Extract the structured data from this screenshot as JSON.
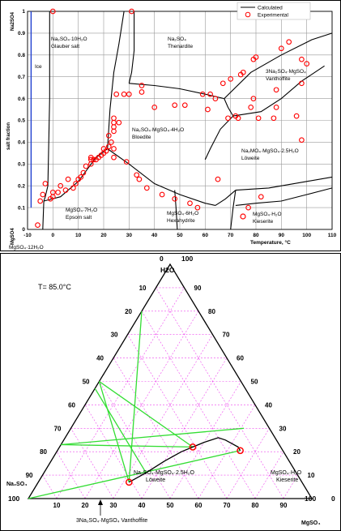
{
  "chart_data": [
    {
      "type": "scatter",
      "xlabel": "Temperature, °C",
      "ylabel_top": "Na2SO4",
      "ylabel_mid": "salt fraction",
      "ylabel_bottom": "MgSO4",
      "xlim": [
        -10,
        110
      ],
      "ylim": [
        0,
        1
      ],
      "xticks": [
        -10,
        0,
        10,
        20,
        30,
        40,
        50,
        60,
        70,
        80,
        90,
        100,
        110
      ],
      "yticks": [
        0,
        0.1,
        0.2,
        0.3,
        0.4,
        0.5,
        0.6,
        0.7,
        0.8,
        0.9,
        1
      ],
      "ytick_labels": [
        "0",
        "0.1",
        "0.2",
        "0.3",
        "0.4",
        "0.5",
        "0.6",
        "0.7",
        "0.8",
        "0.9",
        "1"
      ],
      "legend": {
        "placement": "top-right",
        "calculated": "Calculated",
        "experimental": "Experimental"
      },
      "colors": {
        "calculated": "#000000",
        "experimental": "#ff0000",
        "ice": "#1f3fd0",
        "grid": "#9a9a9a"
      },
      "region_labels": {
        "ice": "Ice",
        "glauber_1": "Na₂SO₄·10H₂O",
        "glauber_2": "Glauber salt",
        "thenardite_1": "Na₂SO₄",
        "thenardite_2": "Thenardite",
        "vanthoffite_1": "3Na₂SO₄·MgSO₄",
        "vanthoffite_2": "Vanthoffite",
        "bloedite_1": "Na₂SO₄·MgSO₄·4H₂O",
        "bloedite_2": "Bloedite",
        "loweite_1": "Na₂MO₄·MgSO₄·2.5H₂O",
        "loweite_2": "Löweite",
        "epsom_1": "MgSO₄·7H₂O",
        "epsom_2": "Epsom salt",
        "hexa_1": "MgSO₄·6H₂O",
        "hexa_2": "Hexahydrite",
        "kieserite_1": "MgSO₄·H₂O",
        "kieserite_2": "Kieserite",
        "mgso4_12": "MgSO₄·12H₂O"
      },
      "lines": [
        {
          "name": "ice",
          "points": [
            [
              -8.6,
              1.0
            ],
            [
              -8.6,
              0.1
            ]
          ]
        },
        {
          "name": "glauber-ice",
          "points": [
            [
              -1.3,
              1.0
            ],
            [
              -1.3,
              0.6
            ],
            [
              -2.0,
              0.2
            ],
            [
              -3.0,
              0.15
            ],
            [
              -3.6,
              0.13
            ]
          ]
        },
        {
          "name": "ice-epsom",
          "points": [
            [
              -3.6,
              0.13
            ],
            [
              -4.0,
              0.0
            ]
          ]
        },
        {
          "name": "glauber-epsom",
          "points": [
            [
              -3.6,
              0.13
            ],
            [
              3,
              0.15
            ],
            [
              10,
              0.22
            ],
            [
              17,
              0.33
            ],
            [
              21.5,
              0.37
            ]
          ]
        },
        {
          "name": "glauber-bloedite",
          "points": [
            [
              21.5,
              0.37
            ],
            [
              22.5,
              0.55
            ],
            [
              24,
              0.72
            ],
            [
              26,
              0.85
            ],
            [
              28,
              1.0
            ]
          ]
        },
        {
          "name": "glauber-thenardite",
          "points": [
            [
              32,
              1.0
            ],
            [
              32,
              0.82
            ],
            [
              31,
              0.72
            ],
            [
              30,
              0.67
            ]
          ]
        },
        {
          "name": "thenardite-bloedite",
          "points": [
            [
              30,
              0.67
            ],
            [
              40,
              0.66
            ],
            [
              50,
              0.645
            ],
            [
              60,
              0.62
            ],
            [
              67.5,
              0.6
            ]
          ]
        },
        {
          "name": "thenardite-vanthoffite",
          "points": [
            [
              67.5,
              0.6
            ],
            [
              78,
              0.72
            ],
            [
              90,
              0.8
            ],
            [
              102,
              0.87
            ],
            [
              110,
              0.9
            ]
          ]
        },
        {
          "name": "bloedite-vanthoffite",
          "points": [
            [
              67.5,
              0.6
            ],
            [
              69,
              0.56
            ],
            [
              71,
              0.52
            ]
          ]
        },
        {
          "name": "vanthoffite-loweite",
          "points": [
            [
              71,
              0.52
            ],
            [
              82,
              0.54
            ],
            [
              90,
              0.6
            ],
            [
              98,
              0.68
            ],
            [
              107,
              0.75
            ]
          ]
        },
        {
          "name": "bloedite-loweite",
          "points": [
            [
              71,
              0.52
            ],
            [
              66,
              0.46
            ],
            [
              62,
              0.37
            ],
            [
              60,
              0.32
            ]
          ]
        },
        {
          "name": "bloedite-epsom",
          "points": [
            [
              21.5,
              0.37
            ],
            [
              30,
              0.3
            ],
            [
              40,
              0.21
            ],
            [
              50,
              0.16
            ],
            [
              60,
              0.12
            ],
            [
              64,
              0.11
            ]
          ]
        },
        {
          "name": "bloedite-hexa",
          "points": [
            [
              64,
              0.11
            ],
            [
              68,
              0.14
            ],
            [
              72,
              0.18
            ]
          ]
        },
        {
          "name": "loweite-hexa",
          "points": [
            [
              72,
              0.18
            ],
            [
              71,
              0.1
            ],
            [
              70,
              0.0
            ]
          ]
        },
        {
          "name": "loweite-kieserite",
          "points": [
            [
              72,
              0.18
            ],
            [
              85,
              0.19
            ],
            [
              100,
              0.22
            ],
            [
              110,
              0.24
            ]
          ]
        },
        {
          "name": "epsom-hexa",
          "points": [
            [
              48,
              0.18
            ],
            [
              48.5,
              0.1
            ],
            [
              49,
              0.0
            ]
          ]
        },
        {
          "name": "hexa-kieserite",
          "points": [
            [
              72,
              0.11
            ],
            [
              80,
              0.12
            ],
            [
              90,
              0.13
            ],
            [
              100,
              0.16
            ],
            [
              110,
              0.19
            ]
          ]
        }
      ],
      "experimental": [
        [
          -6,
          0.02
        ],
        [
          -5,
          0.13
        ],
        [
          -4,
          0.16
        ],
        [
          -3,
          0.21
        ],
        [
          -1,
          0.14
        ],
        [
          0,
          0.15
        ],
        [
          0,
          0.17
        ],
        [
          0,
          1.0
        ],
        [
          2,
          0.17
        ],
        [
          3,
          0.2
        ],
        [
          5,
          0.18
        ],
        [
          6,
          0.23
        ],
        [
          8,
          0.19
        ],
        [
          9,
          0.21
        ],
        [
          10,
          0.23
        ],
        [
          11,
          0.24
        ],
        [
          12,
          0.26
        ],
        [
          13,
          0.29
        ],
        [
          15,
          0.3
        ],
        [
          15,
          0.32
        ],
        [
          15,
          0.33
        ],
        [
          16,
          0.32
        ],
        [
          17,
          0.32
        ],
        [
          18,
          0.33
        ],
        [
          19,
          0.34
        ],
        [
          20,
          0.35
        ],
        [
          20,
          0.37
        ],
        [
          21,
          0.36
        ],
        [
          22,
          0.43
        ],
        [
          22,
          0.38
        ],
        [
          23,
          0.4
        ],
        [
          24,
          0.37
        ],
        [
          24,
          0.33
        ],
        [
          24,
          0.51
        ],
        [
          24,
          0.49
        ],
        [
          24,
          0.47
        ],
        [
          24,
          0.45
        ],
        [
          25,
          0.62
        ],
        [
          26,
          0.49
        ],
        [
          28,
          0.62
        ],
        [
          29,
          0.31
        ],
        [
          30,
          0.62
        ],
        [
          31,
          1.0
        ],
        [
          33,
          0.25
        ],
        [
          34,
          0.23
        ],
        [
          35,
          0.66
        ],
        [
          35,
          0.63
        ],
        [
          37,
          0.19
        ],
        [
          40,
          0.56
        ],
        [
          43,
          0.16
        ],
        [
          48,
          0.57
        ],
        [
          48,
          0.14
        ],
        [
          52,
          0.57
        ],
        [
          54,
          0.12
        ],
        [
          57,
          0.1
        ],
        [
          59,
          0.62
        ],
        [
          61,
          0.55
        ],
        [
          62,
          0.62
        ],
        [
          64,
          0.6
        ],
        [
          65,
          0.23
        ],
        [
          67,
          0.67
        ],
        [
          69,
          0.51
        ],
        [
          70,
          0.69
        ],
        [
          72,
          0.52
        ],
        [
          73,
          0.51
        ],
        [
          74,
          0.71
        ],
        [
          75,
          0.72
        ],
        [
          77,
          0.1
        ],
        [
          78,
          0.56
        ],
        [
          79,
          0.6
        ],
        [
          79,
          0.78
        ],
        [
          80,
          0.79
        ],
        [
          81,
          0.51
        ],
        [
          82,
          0.15
        ],
        [
          87,
          0.51
        ],
        [
          88,
          0.56
        ],
        [
          88,
          0.64
        ],
        [
          90,
          0.83
        ],
        [
          93,
          0.86
        ],
        [
          96,
          0.52
        ],
        [
          98,
          0.41
        ],
        [
          98,
          0.78
        ],
        [
          98,
          0.67
        ],
        [
          100,
          0.76
        ]
      ]
    },
    {
      "type": "ternary",
      "temperature_label": "T=  85.0°C",
      "vertex_labels": {
        "top": "H2O",
        "left": "Na₂SO₄",
        "right": "MgSO₄",
        "top_pair_left": "0",
        "top_pair_right": "100",
        "right_corner_left": "100",
        "right_corner_right": "0",
        "left_corner": "100"
      },
      "tick_values": [
        10,
        20,
        30,
        40,
        50,
        60,
        70,
        80,
        90
      ],
      "phase_labels": {
        "loweite_1": "Na₂SO₄·MgSO₄·2.5H₂O",
        "loweite_2": "Löweite",
        "kieserite_1": "MgSO₄·H₂O",
        "kieserite_2": "Kieserite",
        "vanthoffite": "3Na₂SO₄·MgSO₄  Vanthoffite"
      },
      "colors": {
        "grid": "#ee44ee",
        "tie": "#33dd33",
        "curve": "#000000",
        "points": "#ff0000"
      },
      "solubility_curve": [
        [
          32,
          7
        ],
        [
          36,
          11
        ],
        [
          40,
          16
        ],
        [
          44,
          20
        ],
        [
          47,
          22
        ],
        [
          50,
          24
        ],
        [
          54,
          26
        ],
        [
          57,
          25
        ],
        [
          60,
          23.5
        ],
        [
          63,
          22
        ],
        [
          64.5,
          20.5
        ]
      ],
      "experimental": [
        [
          32,
          7
        ],
        [
          47,
          22
        ],
        [
          64.5,
          20.5
        ]
      ],
      "tie_lines": [
        [
          [
            32,
            7
          ],
          [
            0,
            80
          ]
        ],
        [
          [
            32,
            7
          ],
          [
            0,
            50
          ]
        ],
        [
          [
            47,
            22
          ],
          [
            0,
            50
          ]
        ],
        [
          [
            47,
            22
          ],
          [
            0,
            23
          ]
        ],
        [
          [
            61,
            30
          ],
          [
            0,
            23
          ]
        ],
        [
          [
            64.5,
            20.5
          ],
          [
            0,
            0
          ]
        ],
        [
          [
            36,
            11
          ],
          [
            0,
            47
          ]
        ]
      ]
    }
  ]
}
